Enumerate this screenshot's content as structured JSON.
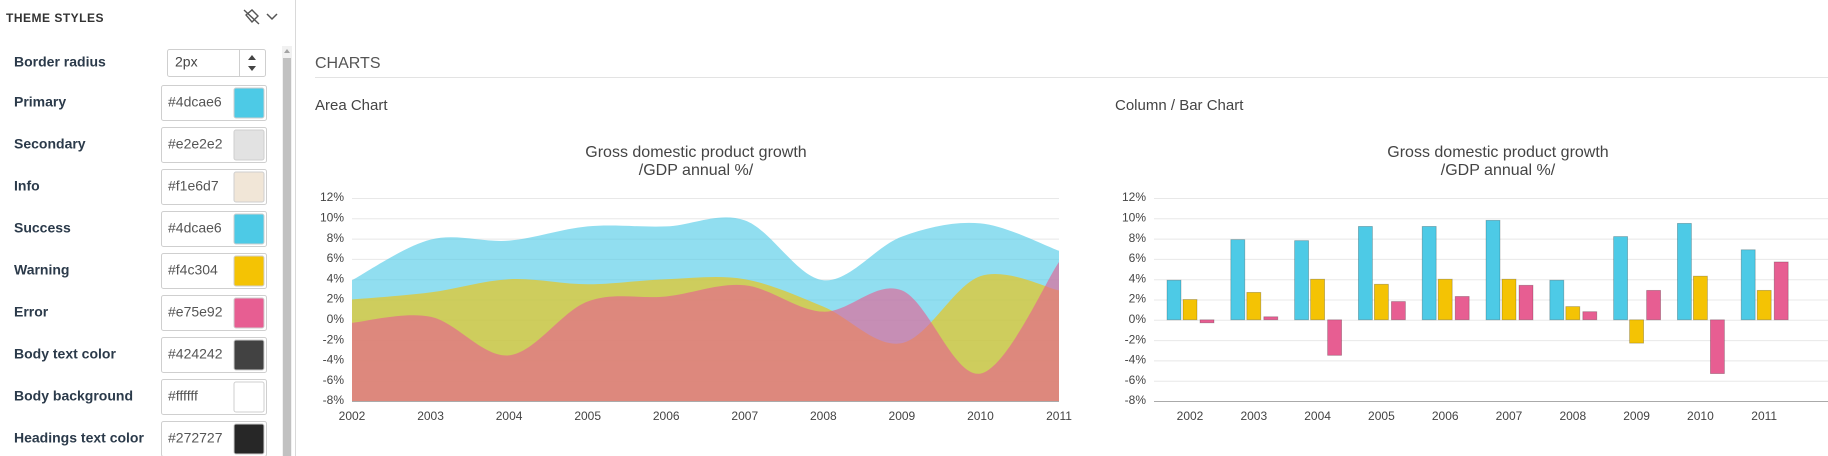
{
  "sidebar": {
    "title": "THEME STYLES",
    "border_radius": {
      "label": "Border radius",
      "value": "2px"
    },
    "fields": [
      {
        "label": "Primary",
        "value": "#4dcae6"
      },
      {
        "label": "Secondary",
        "value": "#e2e2e2"
      },
      {
        "label": "Info",
        "value": "#f1e6d7"
      },
      {
        "label": "Success",
        "value": "#4dcae6"
      },
      {
        "label": "Warning",
        "value": "#f4c304"
      },
      {
        "label": "Error",
        "value": "#e75e92"
      },
      {
        "label": "Body text color",
        "value": "#424242"
      },
      {
        "label": "Body background",
        "value": "#ffffff"
      },
      {
        "label": "Headings text color",
        "value": "#272727"
      }
    ]
  },
  "section_title": "CHARTS",
  "chart_data": [
    {
      "type": "area",
      "heading": "Area Chart",
      "title": "Gross domestic product growth",
      "subtitle": "/GDP annual %/",
      "categories": [
        "2002",
        "2003",
        "2004",
        "2005",
        "2006",
        "2007",
        "2008",
        "2009",
        "2010",
        "2011"
      ],
      "series": [
        {
          "color": "#4dcae6",
          "values": [
            3.9,
            7.9,
            7.8,
            9.2,
            9.2,
            9.8,
            3.9,
            8.2,
            9.5,
            6.8
          ]
        },
        {
          "color": "#f4c304",
          "values": [
            2.0,
            2.7,
            4.0,
            3.5,
            4.0,
            4.0,
            1.3,
            -2.3,
            4.3,
            2.9
          ]
        },
        {
          "color": "#e75e92",
          "values": [
            -0.3,
            0.3,
            -3.5,
            1.8,
            2.3,
            3.4,
            0.8,
            2.9,
            -5.3,
            5.7
          ]
        }
      ],
      "ylim": [
        -8,
        12
      ],
      "yticks": [
        {
          "value": -8,
          "label": "-8%"
        },
        {
          "value": -6,
          "label": "-6%"
        },
        {
          "value": -4,
          "label": "-4%"
        },
        {
          "value": -2,
          "label": "-2%"
        },
        {
          "value": 0,
          "label": "0%"
        },
        {
          "value": 2,
          "label": "2%"
        },
        {
          "value": 4,
          "label": "4%"
        },
        {
          "value": 6,
          "label": "6%"
        },
        {
          "value": 8,
          "label": "8%"
        },
        {
          "value": 10,
          "label": "10%"
        },
        {
          "value": 12,
          "label": "12%"
        }
      ],
      "grid": true
    },
    {
      "type": "bar",
      "heading": "Column / Bar Chart",
      "title": "Gross domestic product growth",
      "subtitle": "/GDP annual %/",
      "categories": [
        "2002",
        "2003",
        "2004",
        "2005",
        "2006",
        "2007",
        "2008",
        "2009",
        "2010",
        "2011"
      ],
      "series": [
        {
          "color": "#4dcae6",
          "values": [
            3.9,
            7.9,
            7.8,
            9.2,
            9.2,
            9.8,
            3.9,
            8.2,
            9.5,
            6.9
          ]
        },
        {
          "color": "#f4c304",
          "values": [
            2.0,
            2.7,
            4.0,
            3.5,
            4.0,
            4.0,
            1.3,
            -2.3,
            4.3,
            2.9
          ]
        },
        {
          "color": "#e75e92",
          "values": [
            -0.3,
            0.3,
            -3.5,
            1.8,
            2.3,
            3.4,
            0.8,
            2.9,
            -5.3,
            5.7
          ]
        }
      ],
      "ylim": [
        -8,
        12
      ],
      "yticks": [
        {
          "value": -8,
          "label": "-8%"
        },
        {
          "value": -6,
          "label": "-6%"
        },
        {
          "value": -4,
          "label": "-4%"
        },
        {
          "value": -2,
          "label": "-2%"
        },
        {
          "value": 0,
          "label": "0%"
        },
        {
          "value": 2,
          "label": "2%"
        },
        {
          "value": 4,
          "label": "4%"
        },
        {
          "value": 6,
          "label": "6%"
        },
        {
          "value": 8,
          "label": "8%"
        },
        {
          "value": 10,
          "label": "10%"
        },
        {
          "value": 12,
          "label": "12%"
        }
      ],
      "grid": true
    }
  ]
}
